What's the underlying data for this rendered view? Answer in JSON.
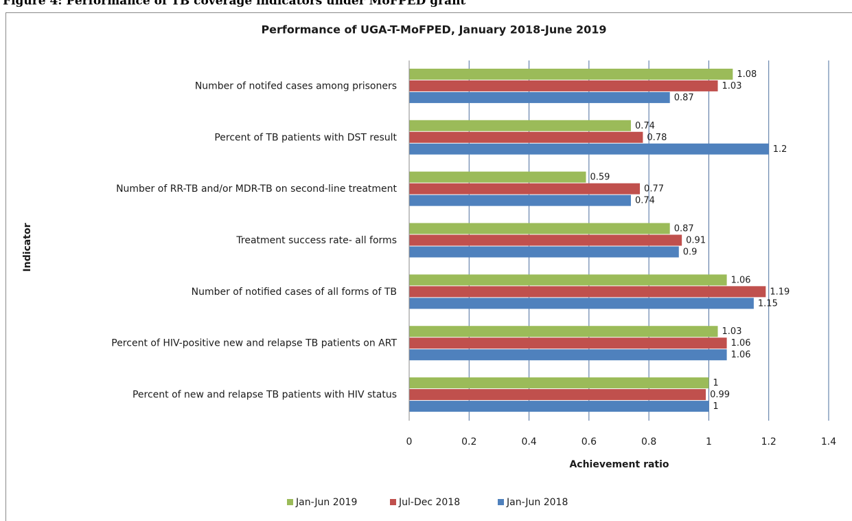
{
  "document": {
    "caption": "Figure 4: Performance of TB coverage indicators under MoFPED grant"
  },
  "chart_data": {
    "type": "hbar",
    "title": "Performance of UGA-T-MoFPED, January 2018-June 2019",
    "x_label": "Achievement ratio",
    "y_label": "Indicator",
    "categories": [
      "Number of notifed cases among prisoners",
      "Percent of TB patients with DST result ",
      "Number of  RR-TB and/or MDR-TB  on second-line treatment",
      "Treatment success rate- all forms",
      "Number of notified cases of all forms of TB",
      "Percent of HIV-positive new and relapse TB patients on ART ",
      "Percent of new and relapse TB patients with HIV status"
    ],
    "series": [
      {
        "name": "Jan-Jun 2019",
        "color": "#9bbb59",
        "values": [
          1.08,
          0.74,
          0.59,
          0.87,
          1.06,
          1.03,
          1
        ]
      },
      {
        "name": "Jul-Dec 2018",
        "color": "#c0504d",
        "values": [
          1.03,
          0.78,
          0.77,
          0.91,
          1.19,
          1.06,
          0.99
        ]
      },
      {
        "name": "Jan-Jun 2018",
        "color": "#4f81bd",
        "values": [
          0.87,
          1.2,
          0.74,
          0.9,
          1.15,
          1.06,
          1
        ]
      }
    ],
    "xlim": [
      0,
      1.4
    ],
    "xticks": [
      0,
      0.2,
      0.4,
      0.6,
      0.8,
      1,
      1.2,
      1.4
    ],
    "grid": true,
    "legend": "bottom"
  }
}
